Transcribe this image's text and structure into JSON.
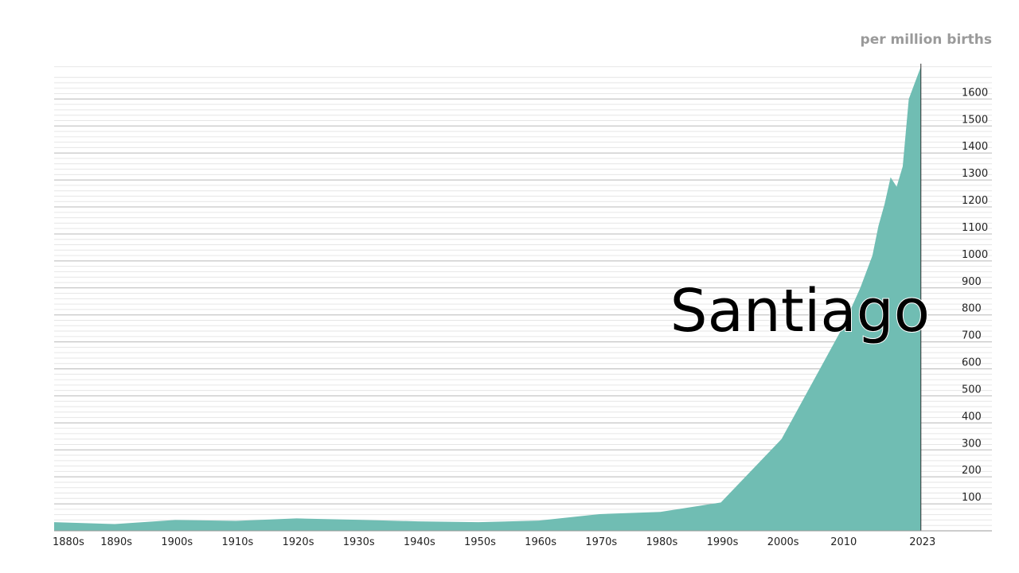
{
  "unit_label": "per million births",
  "name_label": "Santiago",
  "colors": {
    "area": "#70bdb3",
    "grid_major": "#b8b8b8",
    "grid_minor": "#e6e6e6",
    "tick_text": "#222222",
    "unit_text": "#9a9a9a",
    "name_text": "#000000"
  },
  "chart_data": {
    "type": "area",
    "xlabel": "",
    "ylabel": "per million births",
    "xlim": [
      1880,
      2025
    ],
    "ylim": [
      0,
      1725
    ],
    "grid": true,
    "y_ticks": [
      100,
      200,
      300,
      400,
      500,
      600,
      700,
      800,
      900,
      1000,
      1100,
      1200,
      1300,
      1400,
      1500,
      1600
    ],
    "x_ticks": [
      {
        "value": 1880,
        "label": "1880s"
      },
      {
        "value": 1890,
        "label": "1890s"
      },
      {
        "value": 1900,
        "label": "1900s"
      },
      {
        "value": 1910,
        "label": "1910s"
      },
      {
        "value": 1920,
        "label": "1920s"
      },
      {
        "value": 1930,
        "label": "1930s"
      },
      {
        "value": 1940,
        "label": "1940s"
      },
      {
        "value": 1950,
        "label": "1950s"
      },
      {
        "value": 1960,
        "label": "1960s"
      },
      {
        "value": 1970,
        "label": "1970s"
      },
      {
        "value": 1980,
        "label": "1980s"
      },
      {
        "value": 1990,
        "label": "1990s"
      },
      {
        "value": 2000,
        "label": "2000s"
      },
      {
        "value": 2010,
        "label": "2010"
      },
      {
        "value": 2023,
        "label": "2023"
      }
    ],
    "series": [
      {
        "x": [
          1880,
          1890,
          1900,
          1910,
          1920,
          1930,
          1940,
          1950,
          1960,
          1970,
          1980,
          1990,
          2000,
          2010,
          2013,
          2015,
          2016,
          2017,
          2018,
          2019,
          2020,
          2021,
          2022,
          2023
        ],
        "values": [
          32,
          25,
          40,
          37,
          46,
          41,
          35,
          32,
          38,
          62,
          70,
          105,
          340,
          750,
          900,
          1020,
          1130,
          1210,
          1310,
          1275,
          1350,
          1600,
          1660,
          1720
        ]
      }
    ],
    "current_year_marker": 2023
  }
}
